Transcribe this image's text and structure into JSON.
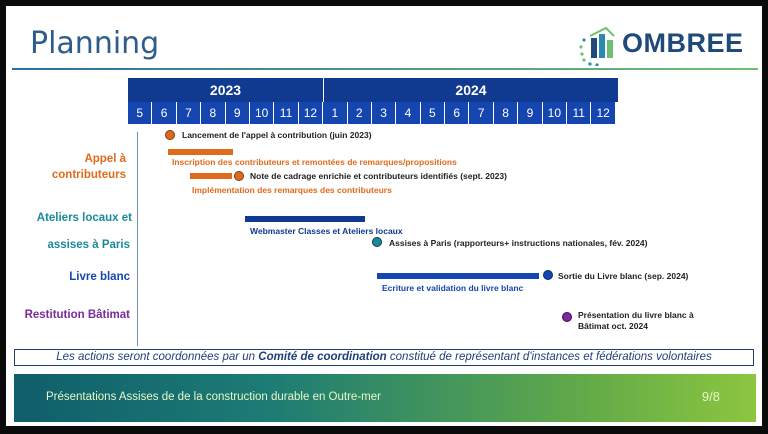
{
  "title": "Planning",
  "logo": {
    "text": "OMBREE"
  },
  "years": [
    "2023",
    "2024"
  ],
  "months": [
    "5",
    "6",
    "7",
    "8",
    "9",
    "10",
    "11",
    "12",
    "1",
    "2",
    "3",
    "4",
    "5",
    "6",
    "7",
    "8",
    "9",
    "10",
    "11",
    "12"
  ],
  "rows": {
    "appel": "Appel à contributeurs",
    "ateliers_1": "Ateliers locaux et",
    "ateliers_2": "assises à Paris",
    "livre": "Livre blanc",
    "restitution": "Restitution Bâtimat"
  },
  "items": {
    "lancement": "Lancement de l'appel à contribution (juin 2023)",
    "inscription": "Inscription des contributeurs et remontées de remarques/propositions",
    "cadrage": "Note de cadrage enrichie et contributeurs identifiés (sept. 2023)",
    "implementation": "Implémentation des remarques des contributeurs",
    "webmaster": "Webmaster Classes et Ateliers locaux",
    "assises": "Assises à Paris (rapporteurs+ instructions nationales, fév. 2024)",
    "ecriture": "Ecriture et validation du livre blanc",
    "sortie": "Sortie du Livre blanc (sep. 2024)",
    "presentation_1": "Présentation du livre blanc à",
    "presentation_2": "Bâtimat oct. 2024"
  },
  "banner": {
    "part1": "Les actions seront coordonnées par un ",
    "bold": "Comité de coordination",
    "part2": " constitué de représentant d'instances et fédérations volontaires"
  },
  "footer": {
    "text": "Présentations Assises de de la construction durable en Outre-mer",
    "page": "9/8"
  },
  "colors": {
    "orange": "#e06a1c",
    "navy": "#0f3a8f",
    "blue": "#1546b0",
    "teal": "#1a8a9a",
    "purple": "#7a2a9a"
  }
}
